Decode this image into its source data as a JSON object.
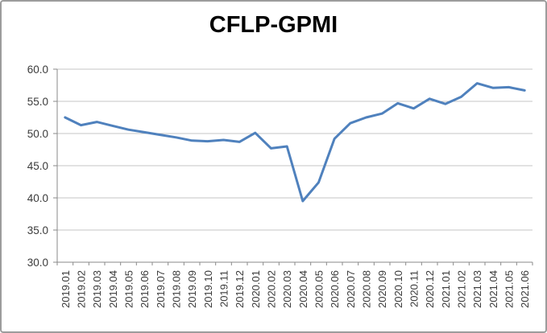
{
  "title": "CFLP-GPMI",
  "chart_data": {
    "type": "line",
    "title": "CFLP-GPMI",
    "xlabel": "",
    "ylabel": "",
    "categories": [
      "2019.01",
      "2019.02",
      "2019.03",
      "2019.04",
      "2019.05",
      "2019.06",
      "2019.07",
      "2019.08",
      "2019.09",
      "2019.10",
      "2019.11",
      "2019.12",
      "2020.01",
      "2020.02",
      "2020.03",
      "2020.04",
      "2020.05",
      "2020.06",
      "2020.07",
      "2020.08",
      "2020.09",
      "2020.10",
      "2020.11",
      "2020.12",
      "2021.01",
      "2021.02",
      "2021.03",
      "2021.04",
      "2021.05",
      "2021.06"
    ],
    "series": [
      {
        "name": "CFLP-GPMI",
        "values": [
          52.5,
          51.3,
          51.8,
          51.2,
          50.6,
          50.2,
          49.8,
          49.4,
          48.9,
          48.8,
          49.0,
          48.7,
          50.1,
          47.7,
          48.0,
          39.5,
          42.4,
          49.2,
          51.6,
          52.5,
          53.1,
          54.7,
          53.9,
          55.4,
          54.6,
          55.7,
          57.8,
          57.1,
          57.2,
          56.7
        ]
      }
    ],
    "ylim": [
      30,
      60
    ],
    "yticks": [
      30,
      35,
      40,
      45,
      50,
      55,
      60
    ],
    "y_tick_labels": [
      "30.0",
      "35.0",
      "40.0",
      "45.0",
      "50.0",
      "55.0",
      "60.0"
    ],
    "grid": "horizontal-only",
    "legend": "none",
    "x_label_rotation": 90,
    "colors": {
      "line": "#4F81BD",
      "gridline": "#c6c6c6",
      "axis": "#8a8a8a",
      "tick_text": "#3a3a3a",
      "title_text": "#000000",
      "panel_border": "#9c9c9c",
      "background": "#ffffff"
    }
  }
}
